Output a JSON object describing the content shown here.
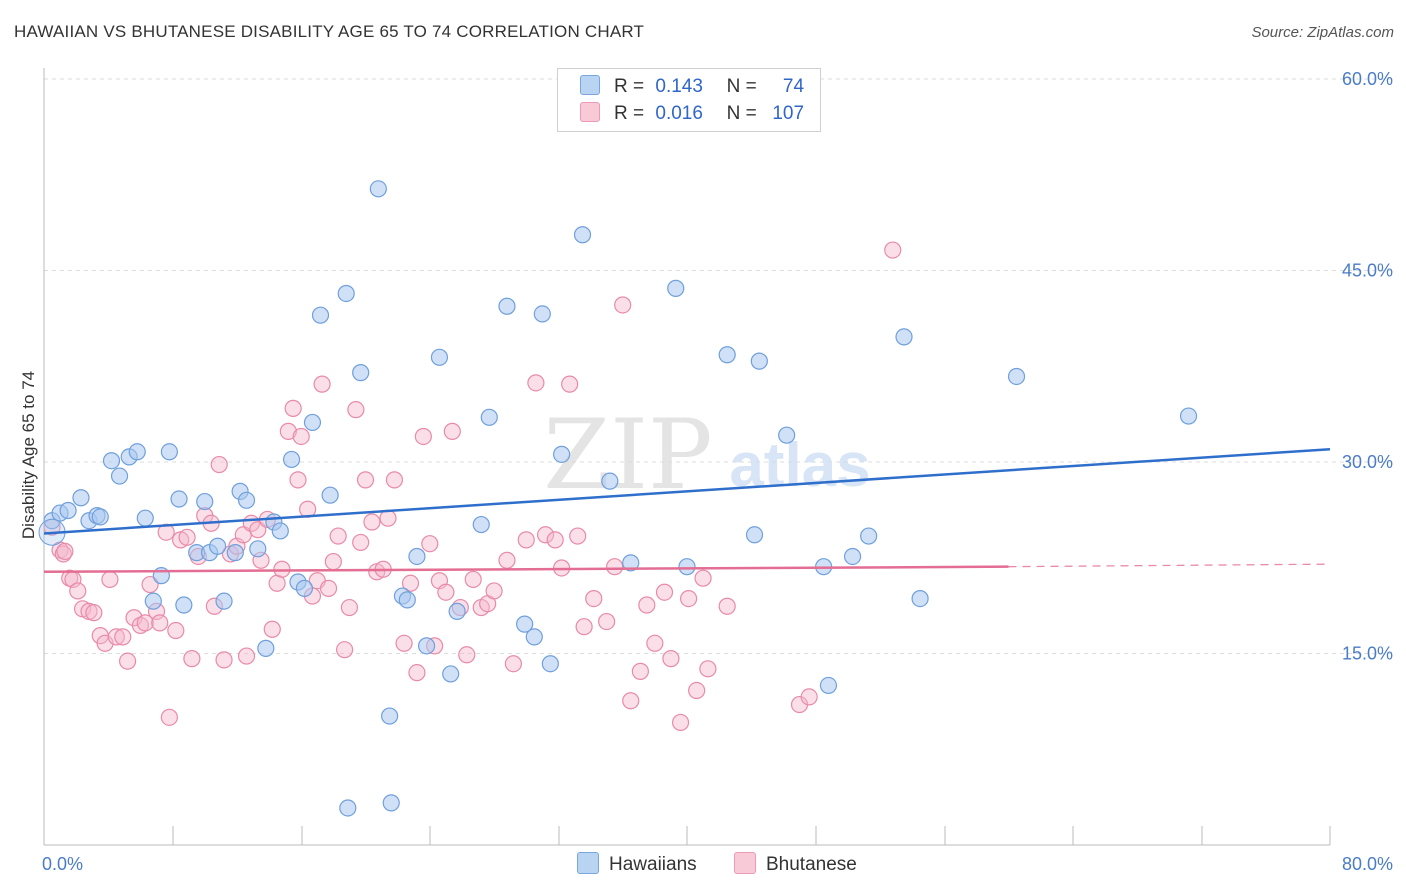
{
  "title": "HAWAIIAN VS BHUTANESE DISABILITY AGE 65 TO 74 CORRELATION CHART",
  "source": "Source: ZipAtlas.com",
  "watermark": {
    "zip": "ZIP",
    "atlas": "atlas"
  },
  "legend": {
    "r_label": "R =",
    "n_label": "N =",
    "hawaiians": {
      "r": "0.143",
      "n": "74"
    },
    "bhutanese": {
      "r": "0.016",
      "n": "107"
    }
  },
  "bottom_legend": {
    "hawaiians": "Hawaiians",
    "bhutanese": "Bhutanese"
  },
  "colors": {
    "blue_fill": "#a9c8f0",
    "blue_stroke": "#6f9fdc",
    "blue_line": "#2f6fcc",
    "pink_fill": "#f5b8cb",
    "pink_stroke": "#e98aa8",
    "pink_line": "#e36d93",
    "grid": "#dddddd",
    "tick_text": "#4a7cc7"
  },
  "chart_data": {
    "type": "scatter",
    "title": "HAWAIIAN VS BHUTANESE DISABILITY AGE 65 TO 74 CORRELATION CHART",
    "xlabel": "",
    "ylabel": "Disability Age 65 to 74",
    "xlim": [
      0,
      80
    ],
    "ylim": [
      0,
      60
    ],
    "x_tick_labels": [
      "0.0%",
      "80.0%"
    ],
    "y_ticks": [
      15,
      30,
      45,
      60
    ],
    "y_tick_labels": [
      "15.0%",
      "30.0%",
      "45.0%",
      "60.0%"
    ],
    "series": [
      {
        "name": "Hawaiians",
        "r": 0.143,
        "n": 74,
        "trend": {
          "x": [
            0,
            80
          ],
          "y": [
            24.4,
            31.0
          ]
        },
        "points": [
          [
            0.5,
            25.4
          ],
          [
            1.0,
            26.0
          ],
          [
            1.5,
            26.2
          ],
          [
            2.3,
            27.2
          ],
          [
            2.8,
            25.4
          ],
          [
            3.3,
            25.8
          ],
          [
            3.5,
            25.7
          ],
          [
            4.2,
            30.1
          ],
          [
            4.7,
            28.9
          ],
          [
            5.3,
            30.4
          ],
          [
            5.8,
            30.8
          ],
          [
            6.3,
            25.6
          ],
          [
            6.8,
            19.1
          ],
          [
            7.3,
            21.1
          ],
          [
            7.8,
            30.8
          ],
          [
            8.4,
            27.1
          ],
          [
            8.7,
            18.8
          ],
          [
            9.5,
            22.9
          ],
          [
            10.0,
            26.9
          ],
          [
            10.3,
            22.9
          ],
          [
            10.8,
            23.4
          ],
          [
            11.2,
            19.1
          ],
          [
            11.9,
            22.9
          ],
          [
            12.2,
            27.7
          ],
          [
            12.6,
            27.0
          ],
          [
            13.3,
            23.2
          ],
          [
            13.8,
            15.4
          ],
          [
            14.3,
            25.3
          ],
          [
            14.7,
            24.6
          ],
          [
            15.4,
            30.2
          ],
          [
            15.8,
            20.6
          ],
          [
            16.2,
            20.1
          ],
          [
            16.7,
            33.1
          ],
          [
            17.2,
            41.5
          ],
          [
            17.8,
            27.4
          ],
          [
            18.8,
            43.2
          ],
          [
            18.9,
            2.9
          ],
          [
            19.7,
            37.0
          ],
          [
            20.8,
            51.4
          ],
          [
            21.5,
            10.1
          ],
          [
            21.6,
            3.3
          ],
          [
            22.3,
            19.5
          ],
          [
            22.6,
            19.2
          ],
          [
            23.2,
            22.6
          ],
          [
            23.8,
            15.6
          ],
          [
            24.6,
            38.2
          ],
          [
            25.3,
            13.4
          ],
          [
            25.7,
            18.3
          ],
          [
            27.2,
            25.1
          ],
          [
            27.7,
            33.5
          ],
          [
            28.8,
            42.2
          ],
          [
            29.9,
            17.3
          ],
          [
            30.5,
            16.3
          ],
          [
            31.0,
            41.6
          ],
          [
            31.5,
            14.2
          ],
          [
            32.2,
            30.6
          ],
          [
            33.5,
            47.8
          ],
          [
            35.2,
            28.5
          ],
          [
            36.5,
            22.1
          ],
          [
            39.3,
            43.6
          ],
          [
            40.0,
            21.8
          ],
          [
            42.5,
            38.4
          ],
          [
            44.2,
            24.3
          ],
          [
            44.5,
            37.9
          ],
          [
            46.2,
            32.1
          ],
          [
            48.5,
            21.8
          ],
          [
            48.8,
            12.5
          ],
          [
            50.3,
            22.6
          ],
          [
            51.3,
            24.2
          ],
          [
            53.5,
            39.8
          ],
          [
            54.5,
            19.3
          ],
          [
            60.5,
            36.7
          ],
          [
            71.2,
            33.6
          ]
        ]
      },
      {
        "name": "Bhutanese",
        "r": 0.016,
        "n": 107,
        "trend": {
          "x": [
            0,
            60
          ],
          "y": [
            21.4,
            21.8
          ]
        },
        "trend_dashed": {
          "x": [
            60,
            80
          ],
          "y": [
            21.8,
            22.0
          ]
        },
        "points": [
          [
            0.5,
            24.9
          ],
          [
            1.0,
            23.1
          ],
          [
            1.2,
            22.8
          ],
          [
            1.3,
            23.0
          ],
          [
            1.6,
            20.9
          ],
          [
            1.8,
            20.8
          ],
          [
            2.1,
            19.9
          ],
          [
            2.4,
            18.5
          ],
          [
            2.8,
            18.3
          ],
          [
            3.1,
            18.2
          ],
          [
            3.5,
            16.4
          ],
          [
            3.8,
            15.8
          ],
          [
            4.1,
            20.8
          ],
          [
            4.5,
            16.3
          ],
          [
            4.9,
            16.3
          ],
          [
            5.2,
            14.4
          ],
          [
            5.6,
            17.8
          ],
          [
            6.0,
            17.2
          ],
          [
            6.3,
            17.4
          ],
          [
            6.6,
            20.4
          ],
          [
            7.0,
            18.3
          ],
          [
            7.2,
            17.4
          ],
          [
            7.6,
            24.5
          ],
          [
            7.8,
            10.0
          ],
          [
            8.2,
            16.8
          ],
          [
            8.5,
            23.9
          ],
          [
            8.9,
            24.1
          ],
          [
            9.2,
            14.6
          ],
          [
            9.6,
            22.6
          ],
          [
            10.0,
            25.8
          ],
          [
            10.4,
            25.2
          ],
          [
            10.6,
            18.7
          ],
          [
            10.9,
            29.8
          ],
          [
            11.2,
            14.5
          ],
          [
            11.6,
            22.8
          ],
          [
            12.0,
            23.4
          ],
          [
            12.4,
            24.3
          ],
          [
            12.6,
            14.8
          ],
          [
            12.9,
            25.2
          ],
          [
            13.3,
            24.7
          ],
          [
            13.5,
            22.3
          ],
          [
            13.9,
            25.5
          ],
          [
            14.2,
            16.9
          ],
          [
            14.5,
            20.5
          ],
          [
            14.8,
            21.6
          ],
          [
            15.2,
            32.4
          ],
          [
            15.5,
            34.2
          ],
          [
            15.8,
            28.6
          ],
          [
            16.0,
            32.0
          ],
          [
            16.4,
            26.3
          ],
          [
            16.7,
            19.5
          ],
          [
            17.0,
            20.7
          ],
          [
            17.3,
            36.1
          ],
          [
            17.7,
            20.1
          ],
          [
            18.0,
            22.2
          ],
          [
            18.3,
            24.2
          ],
          [
            18.7,
            15.3
          ],
          [
            19.0,
            18.6
          ],
          [
            19.4,
            34.1
          ],
          [
            19.7,
            23.7
          ],
          [
            20.0,
            28.6
          ],
          [
            20.4,
            25.3
          ],
          [
            20.7,
            21.4
          ],
          [
            21.1,
            21.6
          ],
          [
            21.4,
            25.6
          ],
          [
            21.8,
            28.6
          ],
          [
            22.4,
            15.8
          ],
          [
            22.8,
            20.5
          ],
          [
            23.2,
            13.5
          ],
          [
            23.6,
            32.0
          ],
          [
            24.0,
            23.6
          ],
          [
            24.3,
            15.6
          ],
          [
            24.6,
            20.7
          ],
          [
            25.0,
            19.8
          ],
          [
            25.4,
            32.4
          ],
          [
            25.9,
            18.6
          ],
          [
            26.3,
            14.9
          ],
          [
            26.7,
            20.8
          ],
          [
            27.2,
            18.6
          ],
          [
            27.6,
            18.9
          ],
          [
            28.0,
            19.9
          ],
          [
            28.8,
            22.3
          ],
          [
            29.2,
            14.2
          ],
          [
            30.0,
            23.9
          ],
          [
            30.6,
            36.2
          ],
          [
            31.2,
            24.3
          ],
          [
            31.8,
            23.9
          ],
          [
            32.2,
            21.7
          ],
          [
            32.7,
            36.1
          ],
          [
            33.2,
            24.2
          ],
          [
            33.6,
            17.1
          ],
          [
            34.2,
            19.3
          ],
          [
            35.0,
            17.5
          ],
          [
            35.5,
            21.8
          ],
          [
            36.0,
            42.3
          ],
          [
            36.5,
            11.3
          ],
          [
            37.1,
            13.6
          ],
          [
            37.5,
            18.8
          ],
          [
            38.0,
            15.8
          ],
          [
            38.6,
            19.8
          ],
          [
            39.0,
            14.6
          ],
          [
            39.6,
            9.6
          ],
          [
            40.1,
            19.3
          ],
          [
            40.6,
            12.1
          ],
          [
            41.0,
            20.9
          ],
          [
            41.3,
            13.8
          ],
          [
            42.5,
            18.7
          ],
          [
            47.0,
            11.0
          ],
          [
            47.6,
            11.6
          ],
          [
            52.8,
            46.6
          ]
        ]
      }
    ]
  }
}
